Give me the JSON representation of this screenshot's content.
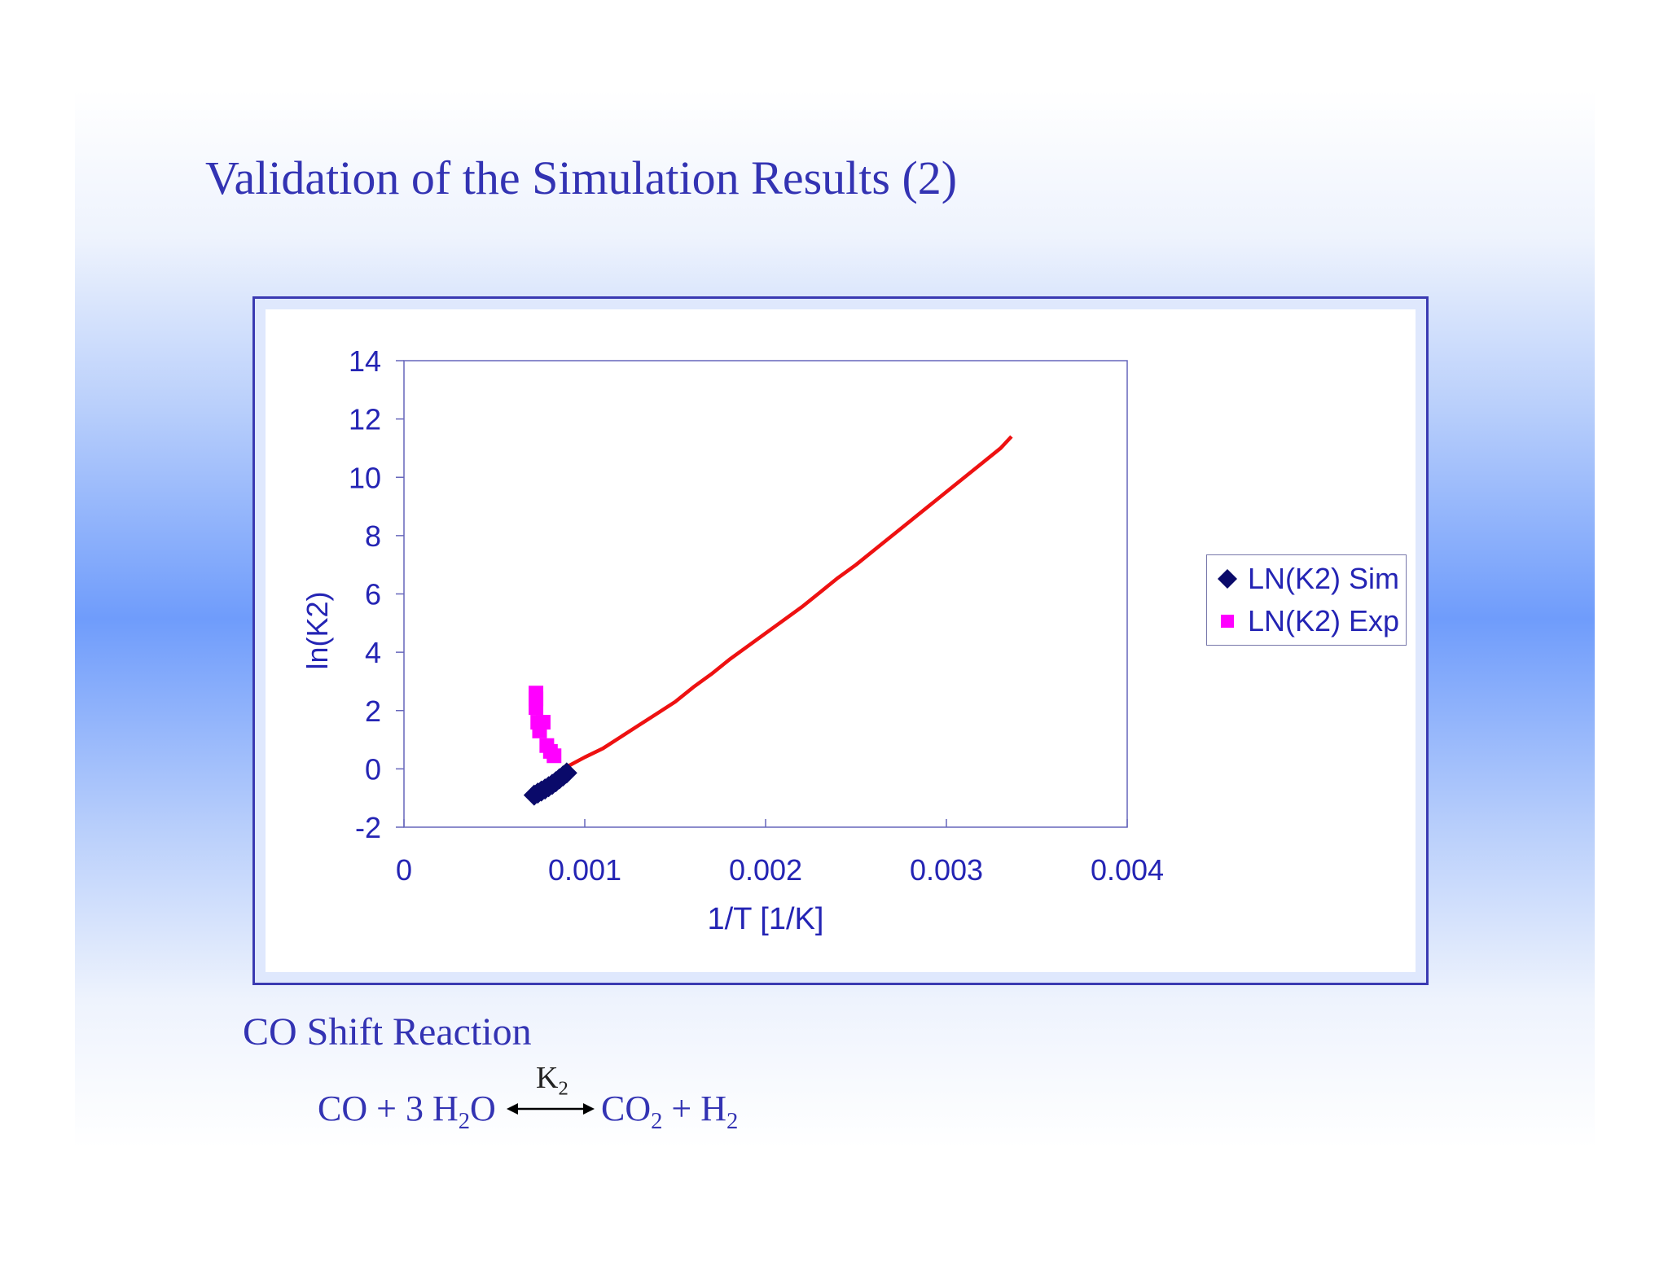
{
  "slide": {
    "title": "Validation of the Simulation Results (2)",
    "caption": "CO Shift Reaction",
    "equation": {
      "left_co": "CO + 3 H",
      "left_h2o_sub": "2",
      "left_o": "O",
      "constant": "K",
      "constant_sub": "2",
      "right_co": "CO",
      "right_co2_sub": "2",
      "right_plus": " + H",
      "right_h2_sub": "2"
    }
  },
  "colors": {
    "text": "#3333b3",
    "sim_marker": "#0a0a6a",
    "exp_marker": "#ff00ff",
    "trend_line": "#ee1111",
    "axis": "#6666bb"
  },
  "chart_data": {
    "type": "scatter",
    "xlabel": "1/T [1/K]",
    "ylabel": "ln(K2)",
    "xlim": [
      0,
      0.004
    ],
    "ylim": [
      -2,
      14
    ],
    "x_ticks": [
      "0",
      "0.001",
      "0.002",
      "0.003",
      "0.004"
    ],
    "y_ticks": [
      "-2",
      "0",
      "2",
      "4",
      "6",
      "8",
      "10",
      "12",
      "14"
    ],
    "grid": false,
    "legend_position": "right",
    "series": [
      {
        "name": "LN(K2) Sim",
        "marker": "diamond",
        "x": [
          0.00072,
          0.00074,
          0.00076,
          0.00078,
          0.0008,
          0.00082,
          0.00084,
          0.00086,
          0.00088,
          0.0009
        ],
        "y": [
          -0.9,
          -0.83,
          -0.76,
          -0.69,
          -0.61,
          -0.53,
          -0.44,
          -0.34,
          -0.24,
          -0.14
        ]
      },
      {
        "name": "LN(K2) Exp",
        "marker": "square",
        "x": [
          0.00073,
          0.00073,
          0.00073,
          0.00074,
          0.00075,
          0.00077,
          0.00079,
          0.00081,
          0.00083
        ],
        "y": [
          2.6,
          2.4,
          2.1,
          1.6,
          1.3,
          1.6,
          0.8,
          0.6,
          0.45
        ]
      },
      {
        "name": "",
        "style": "line",
        "x": [
          0.00091,
          0.001,
          0.0011,
          0.0012,
          0.0013,
          0.0014,
          0.0015,
          0.0016,
          0.0017,
          0.0018,
          0.0019,
          0.002,
          0.0021,
          0.0022,
          0.0023,
          0.0024,
          0.0025,
          0.0026,
          0.0027,
          0.0028,
          0.0029,
          0.003,
          0.0031,
          0.0032,
          0.0033,
          0.00336
        ],
        "y": [
          0.1,
          0.4,
          0.7,
          1.1,
          1.5,
          1.9,
          2.3,
          2.8,
          3.25,
          3.75,
          4.2,
          4.65,
          5.1,
          5.55,
          6.05,
          6.55,
          7.0,
          7.5,
          8.0,
          8.5,
          9.0,
          9.5,
          10.0,
          10.5,
          11.0,
          11.4
        ]
      }
    ]
  }
}
